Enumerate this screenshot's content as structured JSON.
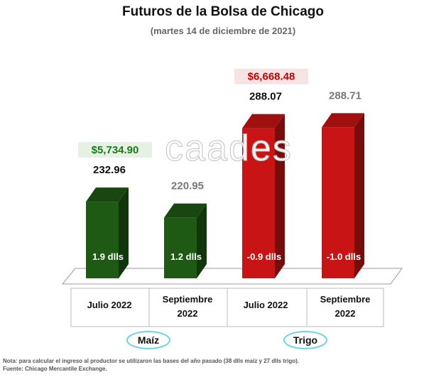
{
  "header": {
    "title": "Futuros de la Bolsa de Chicago",
    "subtitle": "(martes 14 de diciembre de 2021)"
  },
  "watermark": "caades",
  "chart_data": {
    "type": "bar",
    "categories": [
      "Julio 2022",
      "Septiembre 2022",
      "Julio 2022",
      "Septiembre 2022"
    ],
    "values": [
      232.96,
      220.95,
      288.07,
      288.71
    ],
    "value_labels": [
      "232.96",
      "220.95",
      "288.07",
      "288.71"
    ],
    "basis_labels": [
      "1.9 dlls",
      "1.2 dlls",
      "-0.9 dlls",
      "-1.0 dlls"
    ],
    "bar_colors": [
      "#1e5a14",
      "#1e5a14",
      "#c81414",
      "#c81414"
    ],
    "value_label_colors": [
      "#111111",
      "#777777",
      "#111111",
      "#777777"
    ],
    "groups": [
      {
        "name": "Maíz",
        "bars": [
          0,
          1
        ],
        "price_label": "$5,734.90",
        "price_color": "#1a7a1a"
      },
      {
        "name": "Trigo",
        "bars": [
          2,
          3
        ],
        "price_label": "$6,668.48",
        "price_color": "#c00000"
      }
    ],
    "grid": false,
    "legend": "none"
  },
  "footer": {
    "note": "Nota: para calcular el ingreso al productor se utilizaron las bases del año pasado (38 dlls maíz y 27 dlls trigo).",
    "source": "Fuente: Chicago Mercantile Exchange."
  }
}
